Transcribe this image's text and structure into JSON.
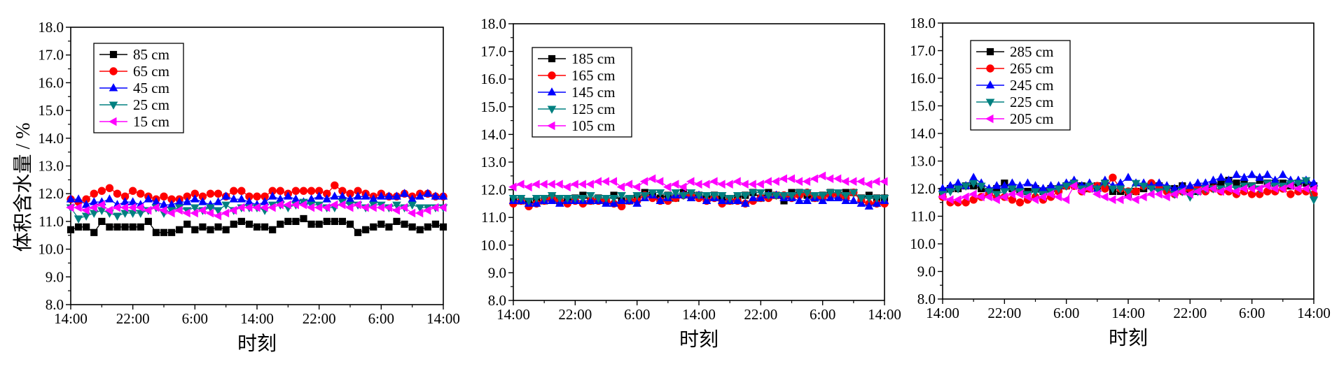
{
  "figure": {
    "ylabel": "体积含水量 / %"
  },
  "colors": {
    "black": "#000000",
    "red": "#ff0000",
    "blue": "#0000ff",
    "teal": "#008080",
    "magenta": "#ff00ff"
  },
  "chart_data": [
    {
      "type": "line",
      "xlabel": "时刻",
      "ylabel": "体积含水量 / %",
      "ylim": [
        8.0,
        18.0
      ],
      "yticks": [
        "8.0",
        "9.0",
        "10.0",
        "11.0",
        "12.0",
        "13.0",
        "14.0",
        "15.0",
        "16.0",
        "17.0",
        "18.0"
      ],
      "xlim": [
        0,
        48
      ],
      "xticks": [
        {
          "x": 0,
          "label": "14:00"
        },
        {
          "x": 8,
          "label": "22:00"
        },
        {
          "x": 16,
          "label": "6:00"
        },
        {
          "x": 24,
          "label": "14:00"
        },
        {
          "x": 32,
          "label": "22:00"
        },
        {
          "x": 40,
          "label": "6:00"
        },
        {
          "x": 48,
          "label": "14:00"
        }
      ],
      "legend_position": "top-left",
      "series": [
        {
          "name": "85 cm",
          "marker": "square",
          "color": "#000000",
          "values": [
            10.7,
            10.8,
            10.8,
            10.6,
            11.0,
            10.8,
            10.8,
            10.8,
            10.8,
            10.8,
            11.0,
            10.6,
            10.6,
            10.6,
            10.7,
            10.9,
            10.7,
            10.8,
            10.7,
            10.8,
            10.7,
            10.9,
            11.0,
            10.9,
            10.8,
            10.8,
            10.7,
            10.9,
            11.0,
            11.0,
            11.1,
            10.9,
            10.9,
            11.0,
            11.0,
            11.0,
            10.9,
            10.6,
            10.7,
            10.8,
            10.9,
            10.8,
            11.0,
            10.9,
            10.8,
            10.7,
            10.8,
            10.9,
            10.8
          ]
        },
        {
          "name": "65 cm",
          "marker": "circle",
          "color": "#ff0000",
          "values": [
            11.8,
            11.7,
            11.8,
            12.0,
            12.1,
            12.2,
            12.0,
            11.9,
            12.1,
            12.0,
            11.9,
            11.8,
            11.9,
            11.8,
            11.8,
            11.9,
            12.0,
            11.9,
            12.0,
            12.0,
            11.9,
            12.1,
            12.1,
            11.9,
            11.9,
            11.9,
            12.1,
            12.1,
            12.0,
            12.1,
            12.1,
            12.1,
            12.1,
            12.0,
            12.3,
            12.1,
            12.0,
            12.1,
            12.0,
            11.9,
            12.0,
            11.9,
            11.9,
            12.0,
            11.9,
            12.0,
            12.0,
            11.9,
            11.9
          ]
        },
        {
          "name": "45 cm",
          "marker": "triangle-up",
          "color": "#0000ff",
          "values": [
            11.8,
            11.8,
            11.6,
            11.7,
            11.7,
            11.8,
            11.6,
            11.7,
            11.7,
            11.6,
            11.8,
            11.7,
            11.6,
            11.6,
            11.7,
            11.7,
            11.8,
            11.7,
            11.6,
            11.7,
            11.9,
            11.8,
            11.8,
            11.7,
            11.6,
            11.7,
            11.9,
            11.8,
            11.9,
            11.8,
            11.7,
            11.8,
            11.9,
            11.8,
            11.9,
            11.9,
            11.8,
            11.9,
            11.9,
            11.8,
            11.9,
            11.9,
            11.9,
            12.0,
            11.8,
            11.9,
            12.0,
            11.9,
            11.9
          ]
        },
        {
          "name": "25 cm",
          "marker": "triangle-down",
          "color": "#008080",
          "values": [
            11.5,
            11.1,
            11.2,
            11.3,
            11.4,
            11.3,
            11.2,
            11.3,
            11.3,
            11.3,
            11.4,
            11.5,
            11.3,
            11.4,
            11.5,
            11.4,
            11.5,
            11.4,
            11.5,
            11.4,
            11.6,
            11.4,
            11.5,
            11.5,
            11.5,
            11.4,
            11.6,
            11.6,
            11.5,
            11.6,
            11.7,
            11.6,
            11.6,
            11.5,
            11.5,
            11.7,
            11.6,
            11.6,
            11.5,
            11.6,
            11.6,
            11.5,
            11.6,
            11.5,
            11.6,
            11.5,
            11.5,
            11.5,
            11.5
          ]
        },
        {
          "name": "15 cm",
          "marker": "triangle-left",
          "color": "#ff00ff",
          "values": [
            11.5,
            11.5,
            11.4,
            11.5,
            11.6,
            11.4,
            11.5,
            11.5,
            11.5,
            11.5,
            11.4,
            11.5,
            11.4,
            11.3,
            11.4,
            11.3,
            11.3,
            11.4,
            11.3,
            11.2,
            11.3,
            11.4,
            11.5,
            11.5,
            11.5,
            11.5,
            11.5,
            11.6,
            11.6,
            11.6,
            11.6,
            11.5,
            11.5,
            11.5,
            11.6,
            11.6,
            11.5,
            11.6,
            11.5,
            11.5,
            11.5,
            11.5,
            11.4,
            11.5,
            11.3,
            11.3,
            11.4,
            11.5,
            11.5
          ]
        }
      ]
    },
    {
      "type": "line",
      "xlabel": "时刻",
      "ylabel": "",
      "ylim": [
        8.0,
        18.0
      ],
      "yticks": [
        "8.0",
        "9.0",
        "10.0",
        "11.0",
        "12.0",
        "13.0",
        "14.0",
        "15.0",
        "16.0",
        "17.0",
        "18.0"
      ],
      "xlim": [
        0,
        48
      ],
      "xticks": [
        {
          "x": 0,
          "label": "14:00"
        },
        {
          "x": 8,
          "label": "22:00"
        },
        {
          "x": 16,
          "label": "6:00"
        },
        {
          "x": 24,
          "label": "14:00"
        },
        {
          "x": 32,
          "label": "22:00"
        },
        {
          "x": 40,
          "label": "6:00"
        },
        {
          "x": 48,
          "label": "14:00"
        }
      ],
      "legend_position": "top-left",
      "series": [
        {
          "name": "185 cm",
          "marker": "square",
          "color": "#000000",
          "values": [
            11.6,
            11.6,
            11.5,
            11.6,
            11.6,
            11.7,
            11.6,
            11.6,
            11.7,
            11.8,
            11.6,
            11.7,
            11.6,
            11.8,
            11.6,
            11.6,
            11.7,
            11.9,
            11.8,
            11.7,
            11.8,
            11.7,
            11.9,
            11.8,
            11.8,
            11.7,
            11.8,
            11.7,
            11.6,
            11.7,
            11.8,
            11.9,
            11.7,
            11.9,
            11.8,
            11.6,
            11.9,
            11.9,
            11.8,
            11.7,
            11.8,
            11.9,
            11.8,
            11.9,
            11.9,
            11.7,
            11.8,
            11.7,
            11.7
          ]
        },
        {
          "name": "165 cm",
          "marker": "circle",
          "color": "#ff0000",
          "values": [
            11.5,
            11.6,
            11.4,
            11.5,
            11.6,
            11.7,
            11.6,
            11.5,
            11.6,
            11.5,
            11.6,
            11.6,
            11.6,
            11.5,
            11.4,
            11.6,
            11.6,
            11.8,
            11.7,
            11.6,
            11.6,
            11.7,
            11.8,
            11.8,
            11.7,
            11.6,
            11.7,
            11.5,
            11.6,
            11.6,
            11.5,
            11.6,
            11.7,
            11.7,
            11.8,
            11.8,
            11.7,
            11.8,
            11.9,
            11.7,
            11.7,
            11.8,
            11.8,
            11.7,
            11.9,
            11.6,
            11.5,
            11.5,
            11.5
          ]
        },
        {
          "name": "145 cm",
          "marker": "triangle-up",
          "color": "#0000ff",
          "values": [
            11.6,
            11.6,
            11.5,
            11.5,
            11.6,
            11.6,
            11.5,
            11.6,
            11.6,
            11.6,
            11.6,
            11.6,
            11.5,
            11.5,
            11.6,
            11.6,
            11.5,
            11.7,
            11.8,
            11.6,
            11.7,
            11.8,
            11.8,
            11.7,
            11.8,
            11.6,
            11.7,
            11.6,
            11.6,
            11.6,
            11.5,
            11.7,
            11.7,
            11.8,
            11.8,
            11.7,
            11.7,
            11.6,
            11.6,
            11.7,
            11.6,
            11.7,
            11.7,
            11.6,
            11.6,
            11.5,
            11.4,
            11.5,
            11.6
          ]
        },
        {
          "name": "125 cm",
          "marker": "triangle-down",
          "color": "#008080",
          "values": [
            11.7,
            11.7,
            11.6,
            11.7,
            11.7,
            11.8,
            11.7,
            11.7,
            11.7,
            11.7,
            11.8,
            11.7,
            11.7,
            11.7,
            11.8,
            11.7,
            11.8,
            11.8,
            11.9,
            11.9,
            11.8,
            11.9,
            11.8,
            11.9,
            11.8,
            11.8,
            11.8,
            11.8,
            11.7,
            11.8,
            11.8,
            11.9,
            11.9,
            11.8,
            11.8,
            11.8,
            11.8,
            11.9,
            11.9,
            11.8,
            11.8,
            11.9,
            11.9,
            11.8,
            11.9,
            11.7,
            11.7,
            11.7,
            11.7
          ]
        },
        {
          "name": "105 cm",
          "marker": "triangle-left",
          "color": "#ff00ff",
          "values": [
            12.1,
            12.2,
            12.1,
            12.2,
            12.2,
            12.2,
            12.2,
            12.1,
            12.2,
            12.2,
            12.2,
            12.3,
            12.3,
            12.3,
            12.1,
            12.2,
            12.1,
            12.3,
            12.4,
            12.3,
            12.1,
            12.2,
            12.1,
            12.3,
            12.2,
            12.2,
            12.3,
            12.2,
            12.2,
            12.3,
            12.2,
            12.2,
            12.2,
            12.3,
            12.3,
            12.4,
            12.4,
            12.3,
            12.3,
            12.4,
            12.5,
            12.4,
            12.4,
            12.3,
            12.3,
            12.3,
            12.2,
            12.3,
            12.3
          ]
        }
      ]
    },
    {
      "type": "line",
      "xlabel": "时刻",
      "ylabel": "",
      "ylim": [
        8.0,
        18.0
      ],
      "yticks": [
        "8.0",
        "9.0",
        "10.0",
        "11.0",
        "12.0",
        "13.0",
        "14.0",
        "15.0",
        "16.0",
        "17.0",
        "18.0"
      ],
      "xlim": [
        0,
        48
      ],
      "xticks": [
        {
          "x": 0,
          "label": "14:00"
        },
        {
          "x": 8,
          "label": "22:00"
        },
        {
          "x": 16,
          "label": "6:00"
        },
        {
          "x": 24,
          "label": "14:00"
        },
        {
          "x": 32,
          "label": "22:00"
        },
        {
          "x": 40,
          "label": "6:00"
        },
        {
          "x": 48,
          "label": "14:00"
        }
      ],
      "legend_position": "top-left",
      "series": [
        {
          "name": "285 cm",
          "marker": "square",
          "color": "#000000",
          "values": [
            11.9,
            12.0,
            12.0,
            12.1,
            12.1,
            12.0,
            11.9,
            12.0,
            12.2,
            12.0,
            11.9,
            11.9,
            12.0,
            11.9,
            12.0,
            12.0,
            12.1,
            12.2,
            12.1,
            12.0,
            12.1,
            12.2,
            11.9,
            11.9,
            11.8,
            11.9,
            12.0,
            12.1,
            12.1,
            12.0,
            12.0,
            12.1,
            11.9,
            11.9,
            12.0,
            12.1,
            12.2,
            12.3,
            12.2,
            12.2,
            12.1,
            12.3,
            12.2,
            12.2,
            12.2,
            12.1,
            12.2,
            12.2,
            12.1
          ]
        },
        {
          "name": "265 cm",
          "marker": "circle",
          "color": "#ff0000",
          "values": [
            11.7,
            11.5,
            11.5,
            11.5,
            11.6,
            11.7,
            11.8,
            11.7,
            11.7,
            11.6,
            11.5,
            11.6,
            11.7,
            11.6,
            11.7,
            11.9,
            12.1,
            12.1,
            11.9,
            12.0,
            12.1,
            12.0,
            12.4,
            12.0,
            11.9,
            11.9,
            12.1,
            12.2,
            12.0,
            11.9,
            11.8,
            11.9,
            12.0,
            12.1,
            11.9,
            12.0,
            11.9,
            11.9,
            11.8,
            11.9,
            11.8,
            11.8,
            11.9,
            11.9,
            12.0,
            11.8,
            11.9,
            11.9,
            11.8
          ]
        },
        {
          "name": "245 cm",
          "marker": "triangle-up",
          "color": "#0000ff",
          "values": [
            12.0,
            12.1,
            12.2,
            12.1,
            12.4,
            12.2,
            12.0,
            12.1,
            12.1,
            12.2,
            12.1,
            12.2,
            12.1,
            12.0,
            12.1,
            12.1,
            12.2,
            12.3,
            12.1,
            12.2,
            12.0,
            12.3,
            12.1,
            12.2,
            12.4,
            12.2,
            12.2,
            12.1,
            12.2,
            12.1,
            12.0,
            12.1,
            12.1,
            12.2,
            12.2,
            12.3,
            12.4,
            12.3,
            12.5,
            12.4,
            12.5,
            12.4,
            12.5,
            12.3,
            12.5,
            12.3,
            12.3,
            12.3,
            12.2
          ]
        },
        {
          "name": "225 cm",
          "marker": "triangle-down",
          "color": "#008080",
          "values": [
            11.8,
            11.9,
            12.0,
            12.1,
            12.2,
            12.1,
            11.9,
            11.8,
            11.9,
            12.0,
            11.9,
            11.8,
            11.9,
            11.8,
            11.9,
            12.0,
            12.1,
            12.2,
            12.0,
            12.1,
            12.0,
            12.2,
            12.0,
            12.0,
            11.9,
            12.2,
            12.1,
            12.0,
            11.9,
            12.0,
            11.8,
            11.9,
            11.7,
            11.9,
            12.0,
            12.0,
            12.0,
            12.1,
            12.0,
            12.1,
            12.1,
            12.0,
            12.2,
            12.1,
            12.1,
            12.2,
            12.2,
            12.3,
            11.6
          ]
        },
        {
          "name": "205 cm",
          "marker": "triangle-left",
          "color": "#ff00ff",
          "values": [
            11.7,
            11.6,
            11.6,
            11.7,
            11.8,
            11.7,
            11.7,
            11.6,
            11.7,
            11.8,
            11.8,
            11.7,
            11.6,
            11.7,
            11.8,
            11.7,
            11.6,
            12.1,
            11.9,
            12.0,
            11.8,
            11.7,
            11.6,
            11.6,
            11.7,
            11.6,
            11.7,
            11.8,
            11.8,
            11.7,
            11.8,
            11.9,
            11.8,
            11.9,
            12.0,
            12.0,
            11.9,
            12.0,
            11.9,
            12.0,
            12.0,
            12.0,
            12.1,
            12.0,
            12.0,
            12.1,
            12.0,
            12.0,
            12.0
          ]
        }
      ]
    }
  ]
}
